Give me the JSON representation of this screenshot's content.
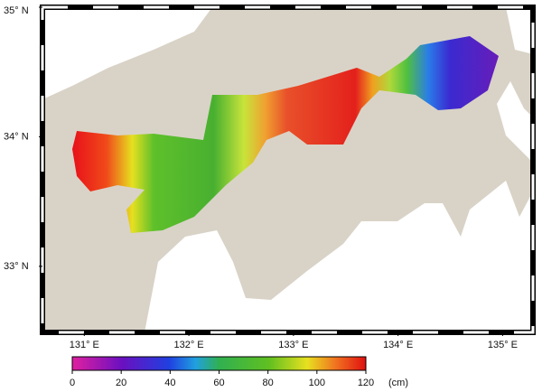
{
  "map": {
    "lon_lim": [
      130.6,
      135.29
    ],
    "lat_lim": [
      32.49,
      35.0
    ],
    "lon_labels": [
      {
        "value": 131,
        "label": "131° E"
      },
      {
        "value": 132,
        "label": "132° E"
      },
      {
        "value": 133,
        "label": "133° E"
      },
      {
        "value": 134,
        "label": "134° E"
      },
      {
        "value": 135,
        "label": "135° E"
      }
    ],
    "lat_labels": [
      {
        "value": 35,
        "label": "35° N"
      },
      {
        "value": 34,
        "label": "34° N"
      },
      {
        "value": 33,
        "label": "33° N"
      }
    ],
    "colorbar": {
      "ticks": [
        0,
        20,
        40,
        60,
        80,
        100,
        120
      ],
      "unit": "(cm)"
    }
  }
}
